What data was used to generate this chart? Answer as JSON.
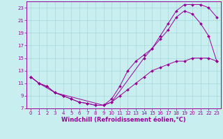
{
  "background_color": "#c8eef0",
  "grid_color": "#a8d8dc",
  "line_color": "#990099",
  "xlabel": "Windchill (Refroidissement éolien,°C)",
  "xlim": [
    -0.5,
    23.5
  ],
  "ylim": [
    7,
    24
  ],
  "xticks": [
    0,
    1,
    2,
    3,
    4,
    5,
    6,
    7,
    8,
    9,
    10,
    11,
    12,
    13,
    14,
    15,
    16,
    17,
    18,
    19,
    20,
    21,
    22,
    23
  ],
  "yticks": [
    7,
    9,
    11,
    13,
    15,
    17,
    19,
    21,
    23
  ],
  "line1_x": [
    0,
    1,
    2,
    3,
    4,
    5,
    6,
    7,
    8,
    9,
    10,
    14,
    15,
    16,
    17,
    18,
    19,
    20,
    21,
    22,
    23
  ],
  "line1_y": [
    12,
    11,
    10.5,
    9.5,
    9.0,
    8.5,
    8.0,
    7.8,
    7.5,
    7.5,
    8.0,
    15.0,
    16.5,
    18.5,
    20.5,
    22.5,
    23.5,
    23.5,
    23.5,
    23.0,
    21.5
  ],
  "line2_x": [
    0,
    1,
    3,
    9,
    10,
    11,
    12,
    13,
    14,
    15,
    16,
    17,
    18,
    19,
    20,
    21,
    22,
    23
  ],
  "line2_y": [
    12,
    11,
    9.5,
    7.5,
    8.5,
    10.5,
    13.0,
    14.5,
    15.5,
    16.5,
    18.0,
    19.5,
    21.5,
    22.5,
    22.0,
    20.5,
    18.5,
    14.5
  ],
  "line3_x": [
    0,
    1,
    2,
    3,
    4,
    5,
    6,
    7,
    8,
    9,
    10,
    11,
    12,
    13,
    14,
    15,
    16,
    17,
    18,
    19,
    20,
    21,
    22,
    23
  ],
  "line3_y": [
    12,
    11,
    10.5,
    9.5,
    9.0,
    8.5,
    8.0,
    7.8,
    7.5,
    7.5,
    8.0,
    9.0,
    10.0,
    11.0,
    12.0,
    13.0,
    13.5,
    14.0,
    14.5,
    14.5,
    15.0,
    15.0,
    15.0,
    14.5
  ],
  "tick_fontsize": 5.0,
  "xlabel_fontsize": 6.0
}
